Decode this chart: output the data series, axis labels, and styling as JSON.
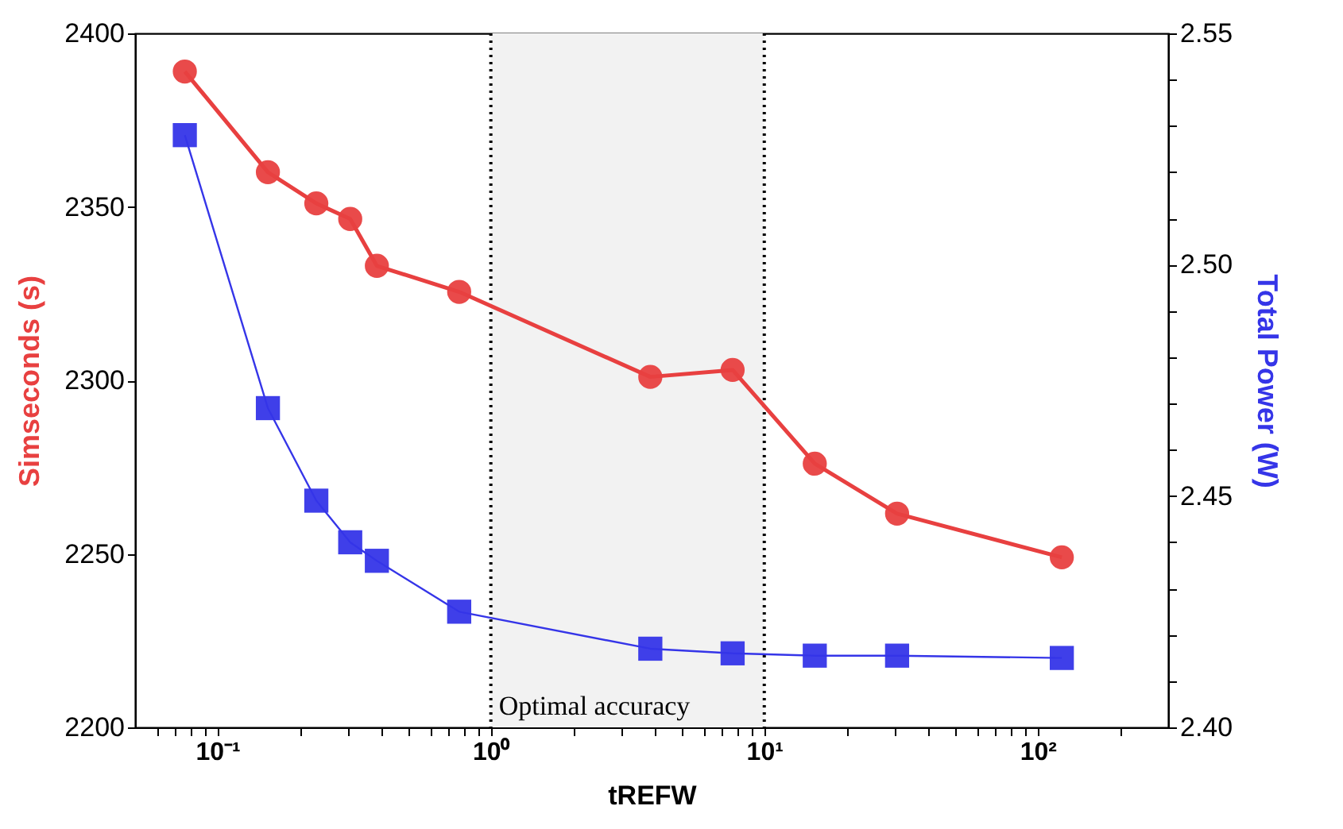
{
  "chart_data": {
    "type": "line",
    "xlabel": "tREFW",
    "ylabel": "Simseconds (s)",
    "y2label": "Total Power (W)",
    "log": "x",
    "xlim": [
      0.05,
      300
    ],
    "xticks": [
      {
        "value": 0.06,
        "label": null
      },
      {
        "value": 0.07,
        "label": null
      },
      {
        "value": 0.08,
        "label": null
      },
      {
        "value": 0.09,
        "label": null
      },
      {
        "value": 0.1,
        "label": "10⁻¹"
      },
      {
        "value": 0.2,
        "label": null
      },
      {
        "value": 0.3,
        "label": null
      },
      {
        "value": 0.4,
        "label": null
      },
      {
        "value": 0.5,
        "label": null
      },
      {
        "value": 0.6,
        "label": null
      },
      {
        "value": 0.7,
        "label": null
      },
      {
        "value": 0.8,
        "label": null
      },
      {
        "value": 0.9,
        "label": null
      },
      {
        "value": 1,
        "label": "10⁰"
      },
      {
        "value": 2,
        "label": null
      },
      {
        "value": 3,
        "label": null
      },
      {
        "value": 4,
        "label": null
      },
      {
        "value": 5,
        "label": null
      },
      {
        "value": 6,
        "label": null
      },
      {
        "value": 7,
        "label": null
      },
      {
        "value": 8,
        "label": null
      },
      {
        "value": 9,
        "label": null
      },
      {
        "value": 10,
        "label": "10¹"
      },
      {
        "value": 20,
        "label": null
      },
      {
        "value": 30,
        "label": null
      },
      {
        "value": 40,
        "label": null
      },
      {
        "value": 50,
        "label": null
      },
      {
        "value": 60,
        "label": null
      },
      {
        "value": 70,
        "label": null
      },
      {
        "value": 80,
        "label": null
      },
      {
        "value": 90,
        "label": null
      },
      {
        "value": 100,
        "label": "10²"
      },
      {
        "value": 200,
        "label": null
      }
    ],
    "ylim": [
      2200,
      2400
    ],
    "yticks": [
      2200,
      2250,
      2300,
      2350,
      2400
    ],
    "y2lim": [
      2.4,
      2.55
    ],
    "y2ticks": [
      {
        "value": 2.4,
        "label": "2.40"
      },
      {
        "value": 2.41,
        "label": null
      },
      {
        "value": 2.42,
        "label": null
      },
      {
        "value": 2.43,
        "label": null
      },
      {
        "value": 2.44,
        "label": null
      },
      {
        "value": 2.45,
        "label": "2.45"
      },
      {
        "value": 2.46,
        "label": null
      },
      {
        "value": 2.47,
        "label": null
      },
      {
        "value": 2.48,
        "label": null
      },
      {
        "value": 2.49,
        "label": null
      },
      {
        "value": 2.5,
        "label": "2.50"
      },
      {
        "value": 2.51,
        "label": null
      },
      {
        "value": 2.52,
        "label": null
      },
      {
        "value": 2.53,
        "label": null
      },
      {
        "value": 2.54,
        "label": null
      },
      {
        "value": 2.55,
        "label": "2.55"
      }
    ],
    "x": [
      0.076,
      0.153,
      0.23,
      0.306,
      0.383,
      0.766,
      3.83,
      7.66,
      15.3,
      30.6,
      122.5
    ],
    "series": [
      {
        "color": "#e84040",
        "marker": "circle",
        "values": [
          2389,
          2360,
          2351,
          2346.5,
          2333,
          2325.5,
          2301,
          2303,
          2276,
          2261.6,
          2249
        ]
      },
      {
        "color": "#3535e8",
        "marker": "square",
        "axis": "y2",
        "values": [
          2.528,
          2.469,
          2.449,
          2.44,
          2.436,
          2.425,
          2.417,
          2.416,
          2.4155,
          2.4155,
          2.415
        ]
      }
    ],
    "bands": [
      {
        "axis": "x",
        "from": 1,
        "to": 10,
        "label": "Optimal accuracy",
        "color": "#f2f2f2"
      }
    ],
    "ref_lines": [
      {
        "axis": "x",
        "value": 1,
        "line_style": "dotted",
        "color": "#000000"
      },
      {
        "axis": "x",
        "value": 10,
        "line_style": "dotted",
        "color": "#000000"
      }
    ],
    "grid": false
  }
}
